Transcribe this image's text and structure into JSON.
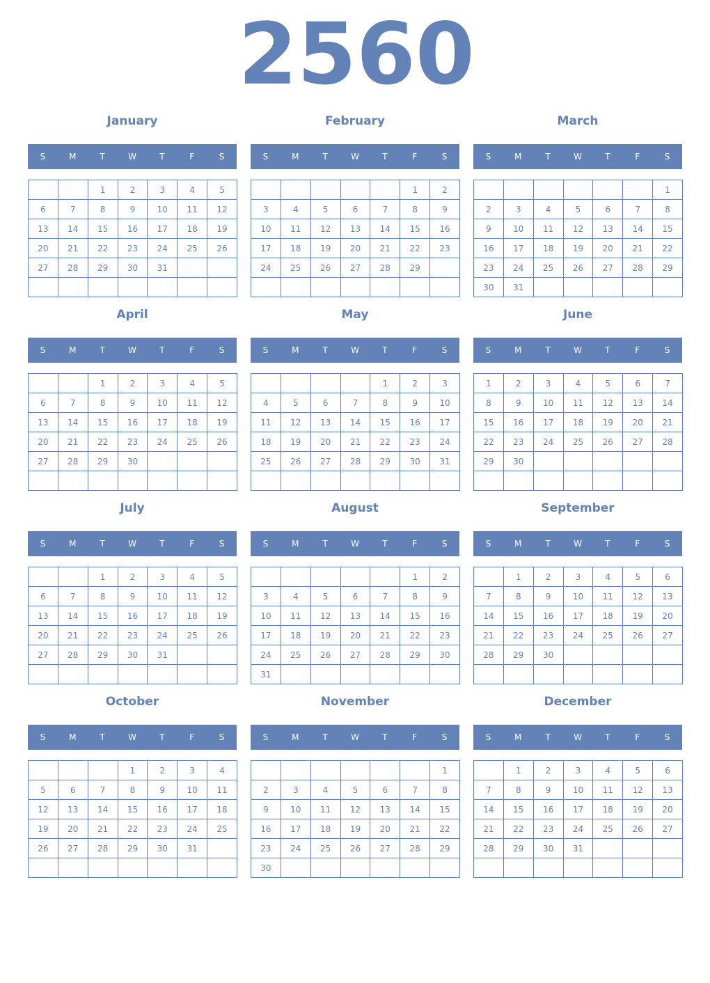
{
  "year": "2560",
  "weekdays": [
    "S",
    "M",
    "T",
    "W",
    "T",
    "F",
    "S"
  ],
  "accent": "#6383b8",
  "months": [
    {
      "name": "January",
      "first_weekday": 2,
      "days": 31
    },
    {
      "name": "February",
      "first_weekday": 5,
      "days": 29
    },
    {
      "name": "March",
      "first_weekday": 6,
      "days": 31
    },
    {
      "name": "April",
      "first_weekday": 2,
      "days": 30
    },
    {
      "name": "May",
      "first_weekday": 4,
      "days": 31
    },
    {
      "name": "June",
      "first_weekday": 0,
      "days": 30
    },
    {
      "name": "July",
      "first_weekday": 2,
      "days": 31
    },
    {
      "name": "August",
      "first_weekday": 5,
      "days": 31
    },
    {
      "name": "September",
      "first_weekday": 1,
      "days": 30
    },
    {
      "name": "October",
      "first_weekday": 3,
      "days": 31
    },
    {
      "name": "November",
      "first_weekday": 6,
      "days": 30
    },
    {
      "name": "December",
      "first_weekday": 1,
      "days": 31
    }
  ]
}
